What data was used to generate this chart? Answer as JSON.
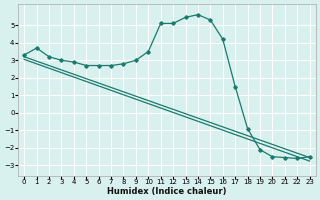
{
  "xlabel": "Humidex (Indice chaleur)",
  "background_color": "#d8f0ee",
  "grid_color": "#ffffff",
  "line_color": "#1a7a6e",
  "xlim": [
    -0.5,
    23.5
  ],
  "ylim": [
    -3.6,
    6.2
  ],
  "yticks": [
    -3,
    -2,
    -1,
    0,
    1,
    2,
    3,
    4,
    5
  ],
  "xticks": [
    0,
    1,
    2,
    3,
    4,
    5,
    6,
    7,
    8,
    9,
    10,
    11,
    12,
    13,
    14,
    15,
    16,
    17,
    18,
    19,
    20,
    21,
    22,
    23
  ],
  "curve1_x": [
    0,
    1,
    2,
    3,
    4,
    5,
    6,
    7,
    8,
    9,
    10,
    11,
    12,
    13,
    14,
    15,
    16,
    17,
    18,
    19,
    20,
    21,
    22,
    23
  ],
  "curve1_y": [
    3.3,
    3.7,
    3.2,
    3.0,
    2.9,
    2.7,
    2.7,
    2.7,
    2.8,
    3.0,
    3.5,
    5.1,
    5.1,
    5.45,
    5.6,
    5.3,
    4.2,
    1.5,
    -0.9,
    -2.1,
    -2.5,
    -2.55,
    -2.6,
    -2.5
  ],
  "line2_x0": 0,
  "line2_x1": 23,
  "line2_y0": 3.2,
  "line2_y1": -2.55,
  "line3_x0": 0,
  "line3_x1": 23,
  "line3_y0": 3.05,
  "line3_y1": -2.75
}
